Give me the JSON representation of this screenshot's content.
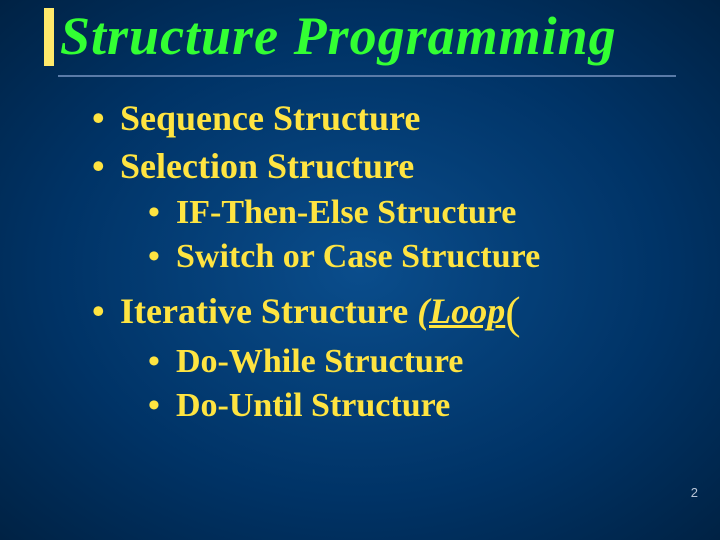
{
  "slide": {
    "background_center": "#0a4d8c",
    "background_edge": "#002244",
    "title_color": "#33ff33",
    "text_color": "#ffe441",
    "accent_bar_color": "#ffe96b",
    "rule_color": "#5a7ba8",
    "title_fontsize": 54,
    "l1_fontsize": 36,
    "l2_fontsize": 34,
    "title": "Structure  Programming",
    "items": [
      {
        "level": 1,
        "text": "Sequence  Structure"
      },
      {
        "level": 1,
        "text": "Selection  Structure"
      },
      {
        "level": 2,
        "text": "IF-Then-Else  Structure"
      },
      {
        "level": 2,
        "text": "Switch or Case  Structure"
      },
      {
        "level": 1,
        "text": "Iterative  Structure ",
        "suffix_loop": "(Loop",
        "suffix_paren": "("
      },
      {
        "level": 2,
        "text": "Do-While  Structure"
      },
      {
        "level": 2,
        "text": "Do-Until   Structure"
      }
    ],
    "bullet_char": "•",
    "page_number": "2"
  }
}
